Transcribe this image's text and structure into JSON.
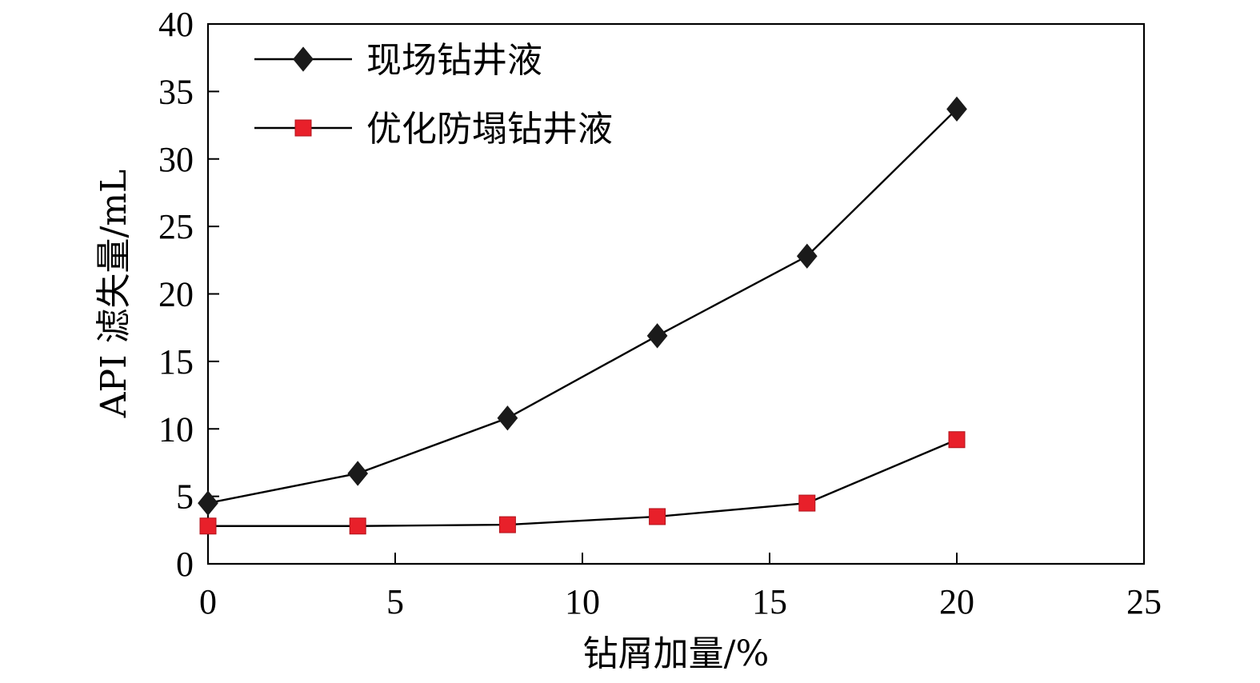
{
  "chart_data": {
    "type": "line",
    "xlabel": "钻屑加量/%",
    "ylabel": "API 滤失量/mL",
    "xlim": [
      0,
      25
    ],
    "ylim": [
      0,
      40
    ],
    "xticks": [
      0,
      5,
      10,
      15,
      20,
      25
    ],
    "yticks": [
      0,
      5,
      10,
      15,
      20,
      25,
      30,
      35,
      40
    ],
    "x": [
      0,
      4,
      8,
      12,
      16,
      20
    ],
    "legend_position": "top-left",
    "grid": false,
    "series": [
      {
        "name": "现场钻井液",
        "values": [
          4.5,
          6.7,
          10.8,
          16.9,
          22.8,
          33.7
        ],
        "marker": "diamond",
        "marker_color": "#1a1a1a",
        "line_color": "#000000"
      },
      {
        "name": "优化防塌钻井液",
        "values": [
          2.8,
          2.8,
          2.9,
          3.5,
          4.5,
          9.2
        ],
        "marker": "square",
        "marker_color": "#e8202a",
        "line_color": "#000000"
      }
    ]
  }
}
